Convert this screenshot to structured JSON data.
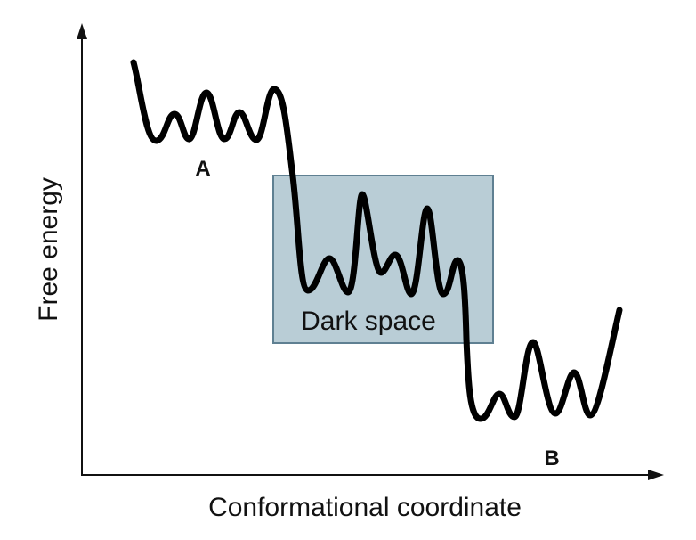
{
  "axes": {
    "x_label": "Conformational coordinate",
    "y_label": "Free energy"
  },
  "states": {
    "a": "A",
    "b": "B"
  },
  "region": {
    "label": "Dark space",
    "fill_color": "#b9cdd6",
    "stroke_color": "#5f8092"
  },
  "curve": {
    "color": "#000000"
  }
}
